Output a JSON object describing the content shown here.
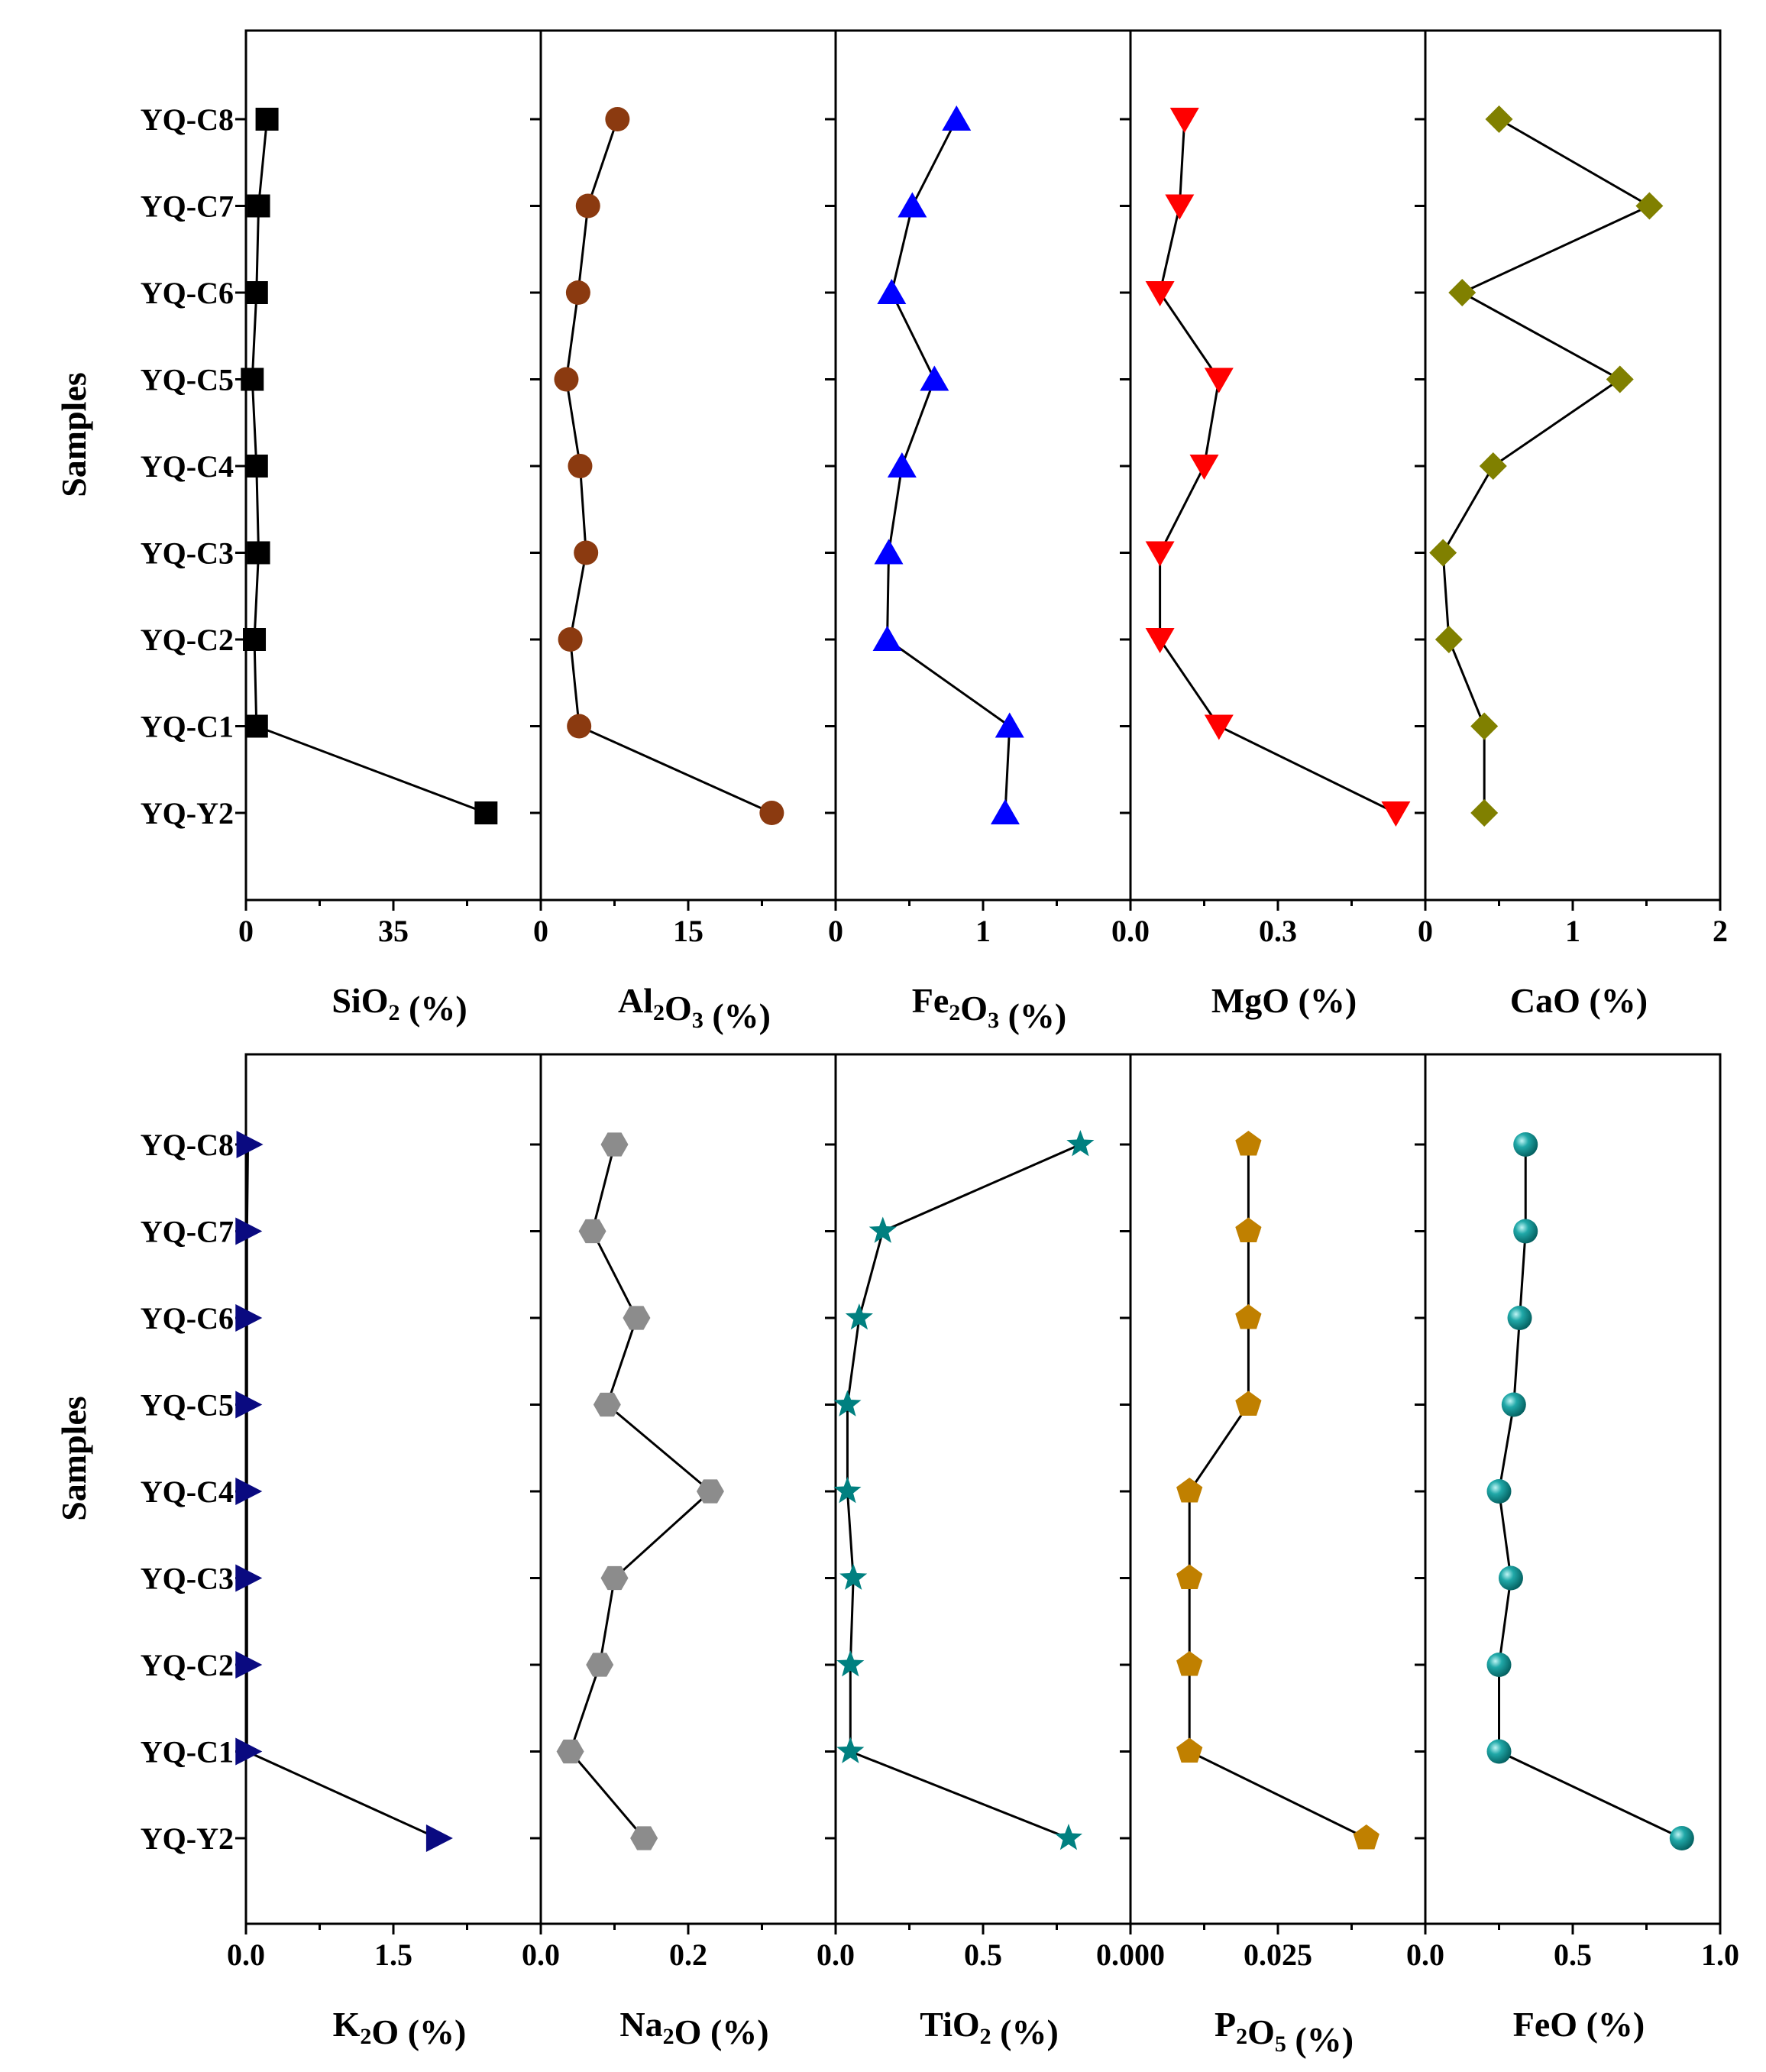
{
  "chart_data": {
    "type": "scatter",
    "ylabel": "Samples",
    "categories": [
      "YQ-C8",
      "YQ-C7",
      "YQ-C6",
      "YQ-C5",
      "YQ-C4",
      "YQ-C3",
      "YQ-C2",
      "YQ-C1",
      "YQ-Y2"
    ],
    "panels": [
      {
        "row": 0,
        "title": {
          "pre": "SiO",
          "sub": "2",
          "mid": "",
          "sub2": "",
          "post": " (%)"
        },
        "xlim": [
          0,
          70
        ],
        "ticks": [
          0,
          35
        ],
        "tick_labels": [
          "0",
          "35"
        ],
        "marker": "square",
        "color": "#000000",
        "values": [
          5,
          3,
          2.5,
          1.5,
          2.5,
          3,
          2,
          2.5,
          57
        ]
      },
      {
        "row": 0,
        "title": {
          "pre": "Al",
          "sub": "2",
          "mid": "O",
          "sub2": "3",
          "post": " (%)"
        },
        "xlim": [
          0,
          30
        ],
        "ticks": [
          0,
          15
        ],
        "tick_labels": [
          "0",
          "15"
        ],
        "marker": "circle",
        "color": "#8B3A10",
        "values": [
          7.8,
          4.8,
          3.8,
          2.6,
          4,
          4.6,
          3,
          3.9,
          23.5
        ]
      },
      {
        "row": 0,
        "title": {
          "pre": "Fe",
          "sub": "2",
          "mid": "O",
          "sub2": "3",
          "post": " (%)"
        },
        "xlim": [
          0,
          2
        ],
        "ticks": [
          0,
          1
        ],
        "tick_labels": [
          "0",
          "1"
        ],
        "marker": "triangle-up",
        "color": "#0000FF",
        "values": [
          0.82,
          0.52,
          0.38,
          0.67,
          0.45,
          0.36,
          0.35,
          1.18,
          1.15
        ]
      },
      {
        "row": 0,
        "title": {
          "pre": "MgO",
          "sub": "",
          "mid": "",
          "sub2": "",
          "post": " (%)"
        },
        "xlim": [
          0,
          0.6
        ],
        "ticks": [
          0,
          0.3
        ],
        "tick_labels": [
          "0.0",
          "0.3"
        ],
        "marker": "triangle-down",
        "color": "#FF0000",
        "values": [
          0.11,
          0.1,
          0.06,
          0.18,
          0.15,
          0.06,
          0.06,
          0.18,
          0.54
        ]
      },
      {
        "row": 0,
        "title": {
          "pre": "CaO",
          "sub": "",
          "mid": "",
          "sub2": "",
          "post": " (%)"
        },
        "xlim": [
          0,
          2
        ],
        "ticks": [
          0,
          1,
          2
        ],
        "tick_labels": [
          "0",
          "1",
          "2"
        ],
        "marker": "diamond",
        "color": "#808000",
        "values": [
          0.5,
          1.52,
          0.25,
          1.32,
          0.46,
          0.12,
          0.16,
          0.4,
          0.4
        ]
      },
      {
        "row": 1,
        "title": {
          "pre": "K",
          "sub": "2",
          "mid": "O",
          "sub2": "",
          "post": " (%)"
        },
        "xlim": [
          0,
          3
        ],
        "ticks": [
          0,
          1.5
        ],
        "tick_labels": [
          "0.0",
          "1.5"
        ],
        "marker": "triangle-right",
        "color": "#0A0A80",
        "values": [
          0.02,
          0.01,
          0.01,
          0.01,
          0.01,
          0.01,
          0.01,
          0.01,
          1.95
        ]
      },
      {
        "row": 1,
        "title": {
          "pre": "Na",
          "sub": "2",
          "mid": "O",
          "sub2": "",
          "post": " (%)"
        },
        "xlim": [
          0,
          0.4
        ],
        "ticks": [
          0,
          0.2
        ],
        "tick_labels": [
          "0.0",
          "0.2"
        ],
        "marker": "hexagon",
        "color": "#8C8C8C",
        "values": [
          0.1,
          0.07,
          0.13,
          0.09,
          0.23,
          0.1,
          0.08,
          0.04,
          0.14
        ]
      },
      {
        "row": 1,
        "title": {
          "pre": "TiO",
          "sub": "2",
          "mid": "",
          "sub2": "",
          "post": " (%)"
        },
        "xlim": [
          0,
          1
        ],
        "ticks": [
          0,
          0.5
        ],
        "tick_labels": [
          "0.0",
          "0.5"
        ],
        "marker": "star",
        "color": "#008080",
        "values": [
          0.83,
          0.16,
          0.08,
          0.04,
          0.04,
          0.06,
          0.05,
          0.05,
          0.79
        ]
      },
      {
        "row": 1,
        "title": {
          "pre": "P",
          "sub": "2",
          "mid": "O",
          "sub2": "5",
          "post": " (%)"
        },
        "xlim": [
          0,
          0.05
        ],
        "ticks": [
          0,
          0.025
        ],
        "tick_labels": [
          "0.000",
          "0.025"
        ],
        "marker": "pentagon",
        "color": "#C08000",
        "values": [
          0.02,
          0.02,
          0.02,
          0.02,
          0.01,
          0.01,
          0.01,
          0.01,
          0.04
        ]
      },
      {
        "row": 1,
        "title": {
          "pre": "FeO",
          "sub": "",
          "mid": "",
          "sub2": "",
          "post": " (%)"
        },
        "xlim": [
          0,
          1
        ],
        "ticks": [
          0,
          0.5,
          1
        ],
        "tick_labels": [
          "0.0",
          "0.5",
          "1.0"
        ],
        "marker": "sphere",
        "color": "#008B8B",
        "values": [
          0.34,
          0.34,
          0.32,
          0.3,
          0.25,
          0.29,
          0.25,
          0.25,
          0.87
        ]
      }
    ]
  }
}
